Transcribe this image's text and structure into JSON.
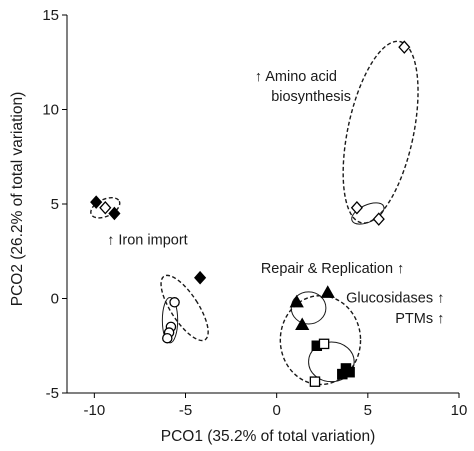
{
  "chart_data": {
    "type": "scatter",
    "xlabel": "PCO1 (35.2% of total variation)",
    "ylabel": "PCO2 (26.2% of total variation)",
    "xlim": [
      -11.5,
      10
    ],
    "ylim": [
      -5,
      15
    ],
    "xticks": [
      -10,
      -5,
      0,
      5,
      10
    ],
    "xtick_labels": [
      "-10",
      "-5",
      "0",
      "5",
      "10"
    ],
    "yticks": [
      -5,
      0,
      5,
      10,
      15
    ],
    "ytick_labels": [
      "-5",
      "0",
      "5",
      "10",
      "15"
    ],
    "grid": false,
    "legend": "none",
    "series": [
      {
        "marker": "diamond",
        "fill": "#000000",
        "x": [
          -9.9,
          -8.9,
          -4.2
        ],
        "y": [
          5.1,
          4.5,
          1.1
        ]
      },
      {
        "marker": "diamond-open",
        "fill": "#ffffff",
        "x": [
          7.0,
          4.4,
          5.6,
          -9.4
        ],
        "y": [
          13.3,
          4.8,
          4.2,
          4.8
        ]
      },
      {
        "marker": "circle-open",
        "fill": "#ffffff",
        "x": [
          -5.6,
          -5.8,
          -5.9,
          -6.0
        ],
        "y": [
          -0.2,
          -1.5,
          -1.8,
          -2.1
        ]
      },
      {
        "marker": "triangle",
        "fill": "#000000",
        "x": [
          1.1,
          2.8,
          1.4
        ],
        "y": [
          -0.2,
          0.3,
          -1.4
        ]
      },
      {
        "marker": "square",
        "fill": "#000000",
        "x": [
          2.2,
          3.8,
          4.0,
          3.6
        ],
        "y": [
          -2.5,
          -3.7,
          -3.9,
          -4.0
        ]
      },
      {
        "marker": "square-open",
        "fill": "#ffffff",
        "x": [
          2.6,
          2.1
        ],
        "y": [
          -2.4,
          -4.4
        ]
      }
    ],
    "ellipses": [
      {
        "style": "dashed",
        "cx": 5.7,
        "cy": 8.8,
        "rx": 1.8,
        "ry": 4.9,
        "angle_deg": 12
      },
      {
        "style": "solid",
        "cx": 5.0,
        "cy": 4.5,
        "rx": 0.95,
        "ry": 0.45,
        "angle_deg": -25
      },
      {
        "style": "dashed",
        "cx": -9.4,
        "cy": 4.8,
        "rx": 0.85,
        "ry": 0.45,
        "angle_deg": -25
      },
      {
        "style": "dashed",
        "cx": -5.05,
        "cy": -0.5,
        "rx": 0.75,
        "ry": 2.0,
        "angle_deg": -33
      },
      {
        "style": "solid",
        "cx": -5.85,
        "cy": -1.15,
        "rx": 0.42,
        "ry": 1.2,
        "angle_deg": 0
      },
      {
        "style": "dashed",
        "cx": 2.4,
        "cy": -2.2,
        "rx": 2.2,
        "ry": 2.35,
        "angle_deg": 0
      },
      {
        "style": "solid",
        "cx": 1.75,
        "cy": -0.5,
        "rx": 0.95,
        "ry": 0.85,
        "angle_deg": 0
      },
      {
        "style": "solid",
        "cx": 3.0,
        "cy": -3.35,
        "rx": 1.25,
        "ry": 1.05,
        "angle_deg": 0
      }
    ],
    "annotations": [
      {
        "text": "↑ Amino acid",
        "x": -1.2,
        "y": 11.5,
        "anchor": "start"
      },
      {
        "text": "biosynthesis",
        "x": -0.3,
        "y": 10.45,
        "anchor": "start"
      },
      {
        "text": "↑ Iron import",
        "x": -9.3,
        "y": 2.85,
        "anchor": "start"
      },
      {
        "text": "Repair & Replication ↑",
        "x": 7.0,
        "y": 1.35,
        "anchor": "end"
      },
      {
        "text": "Glucosidases ↑",
        "x": 9.2,
        "y": -0.2,
        "anchor": "end"
      },
      {
        "text": "PTMs ↑",
        "x": 9.2,
        "y": -1.3,
        "anchor": "end"
      }
    ]
  }
}
